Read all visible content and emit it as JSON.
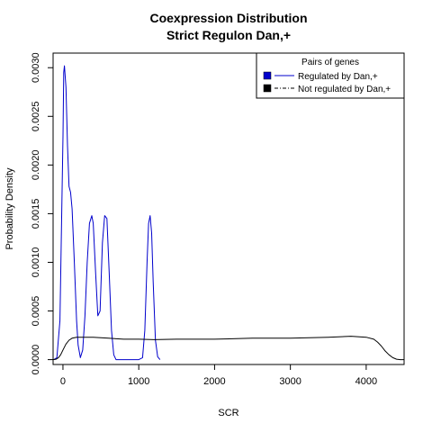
{
  "chart_data": {
    "type": "line",
    "title_line1": "Coexpression Distribution",
    "title_line2": "Strict Regulon Dan,+",
    "xlabel": "SCR",
    "ylabel": "Probability Density",
    "xlim": [
      -130,
      4500
    ],
    "ylim": [
      -5e-05,
      0.00315
    ],
    "x_ticks": [
      0,
      1000,
      2000,
      3000,
      4000
    ],
    "x_tick_labels": [
      "0",
      "1000",
      "2000",
      "3000",
      "4000"
    ],
    "y_ticks": [
      0,
      0.0005,
      0.001,
      0.0015,
      0.002,
      0.0025,
      0.003
    ],
    "y_tick_labels": [
      "0.0000",
      "0.0005",
      "0.0010",
      "0.0015",
      "0.0020",
      "0.0025",
      "0.0030"
    ],
    "grid": false,
    "legend": {
      "title": "Pairs of genes",
      "position": "top-right",
      "entries": [
        "Regulated by  Dan,+",
        "Not regulated by  Dan,+"
      ]
    },
    "series": [
      {
        "name": "Regulated by  Dan,+",
        "color": "#0000cc",
        "x": [
          -120,
          -80,
          -40,
          0,
          10,
          20,
          40,
          60,
          80,
          100,
          120,
          150,
          180,
          200,
          230,
          260,
          290,
          320,
          350,
          380,
          400,
          430,
          460,
          490,
          520,
          550,
          580,
          610,
          640,
          670,
          700,
          750,
          800,
          850,
          900,
          950,
          1000,
          1050,
          1080,
          1110,
          1130,
          1150,
          1170,
          1190,
          1220,
          1250,
          1280
        ],
        "y": [
          0,
          2e-05,
          0.0004,
          0.0023,
          0.00295,
          0.00302,
          0.0028,
          0.0022,
          0.00178,
          0.00172,
          0.00155,
          0.001,
          0.0004,
          0.00015,
          2e-05,
          0.0001,
          0.00045,
          0.001,
          0.0014,
          0.00148,
          0.0014,
          0.0009,
          0.00045,
          0.0005,
          0.0012,
          0.00148,
          0.00145,
          0.0009,
          0.0003,
          5e-05,
          0,
          0,
          0,
          0,
          0,
          0,
          0,
          2e-05,
          0.0003,
          0.001,
          0.0014,
          0.00148,
          0.0013,
          0.0008,
          0.0002,
          3e-05,
          0
        ]
      },
      {
        "name": "Not regulated by  Dan,+",
        "color": "#000000",
        "x": [
          -130,
          -90,
          -60,
          -30,
          0,
          40,
          80,
          120,
          180,
          250,
          400,
          600,
          800,
          1000,
          1200,
          1500,
          2000,
          2500,
          3000,
          3500,
          3800,
          4000,
          4100,
          4150,
          4200,
          4250,
          4300,
          4350,
          4400,
          4450,
          4500
        ],
        "y": [
          0,
          5e-06,
          2e-05,
          5e-05,
          0.0001,
          0.00016,
          0.0002,
          0.00022,
          0.00023,
          0.00023,
          0.00023,
          0.00022,
          0.00021,
          0.00021,
          0.000205,
          0.00021,
          0.00021,
          0.00022,
          0.00022,
          0.00023,
          0.00024,
          0.00023,
          0.00021,
          0.00018,
          0.00014,
          9e-05,
          5e-05,
          2e-05,
          5e-06,
          0,
          0
        ]
      }
    ]
  }
}
